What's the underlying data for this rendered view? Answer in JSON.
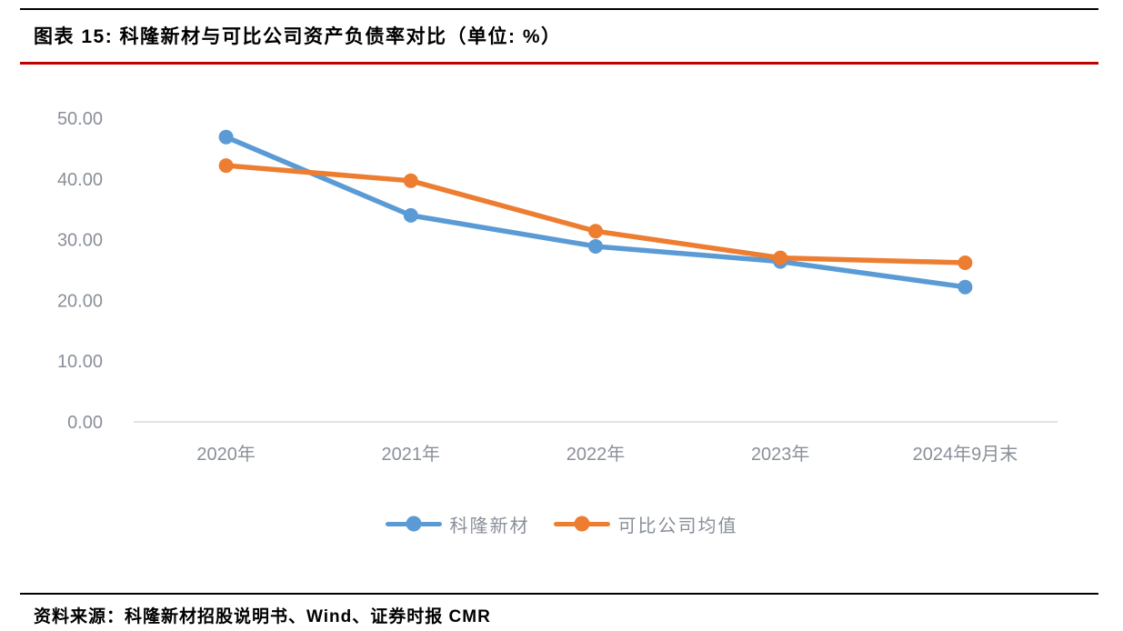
{
  "header": {
    "figure_title": "图表 15: 科隆新材与可比公司资产负债率对比（单位: %）"
  },
  "footer": {
    "source_text": "资料来源：科隆新材招股说明书、Wind、证券时报 CMR"
  },
  "colors": {
    "series_blue": "#5B9BD5",
    "series_orange": "#ED7D31",
    "title_rule_red": "#C00000",
    "document_rule_black": "#000000",
    "axis_text_gray": "#8A8F99",
    "axis_line_gray": "#D9D9D9"
  },
  "chart_data": {
    "type": "line",
    "title": "科隆新材与可比公司资产负债率对比",
    "unit": "%",
    "categories": [
      "2020年",
      "2021年",
      "2022年",
      "2023年",
      "2024年9月末"
    ],
    "series": [
      {
        "name": "科隆新材",
        "color": "#5B9BD5",
        "values": [
          46.9,
          34.0,
          28.9,
          26.4,
          22.2
        ]
      },
      {
        "name": "可比公司均值",
        "color": "#ED7D31",
        "values": [
          42.2,
          39.7,
          31.4,
          27.0,
          26.2
        ]
      }
    ],
    "xlabel": "",
    "ylabel": "",
    "ylim": [
      0,
      50
    ],
    "ytick_step": 10,
    "ytick_labels": [
      "0.00",
      "10.00",
      "20.00",
      "30.00",
      "40.00",
      "50.00"
    ],
    "grid": false,
    "markers": "circle",
    "legend_position": "bottom"
  }
}
